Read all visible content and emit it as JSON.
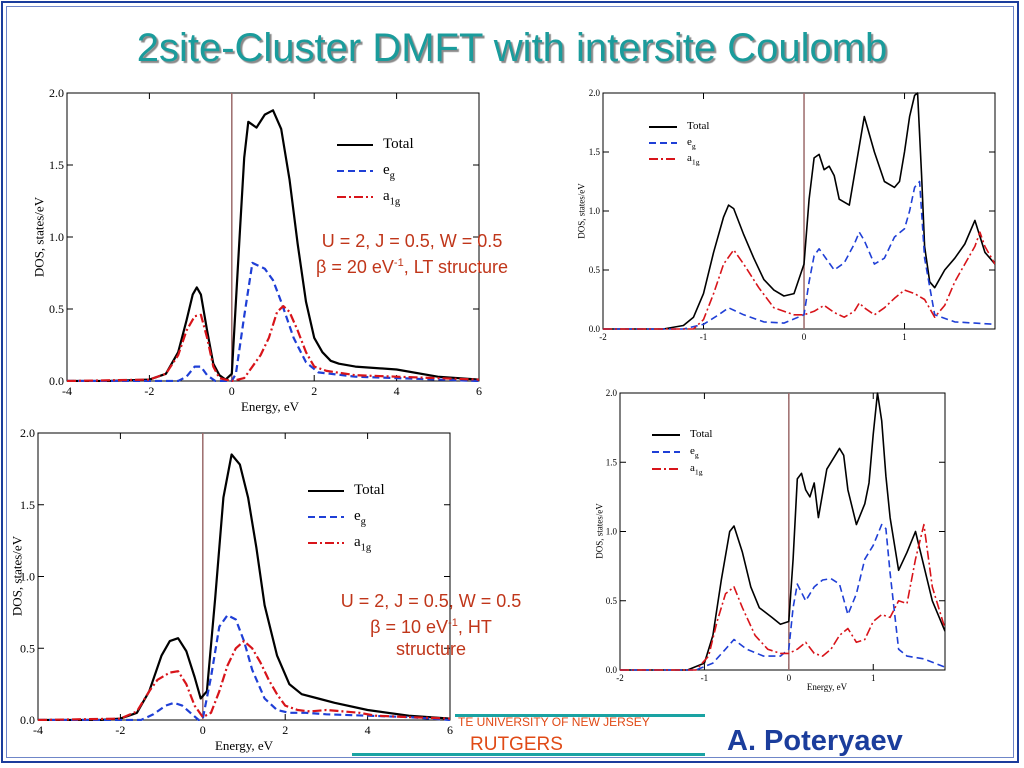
{
  "slide": {
    "title": "2site-Cluster DMFT with intersite Coulomb",
    "footer_university": "TE UNIVERSITY OF NEW JERSEY",
    "footer_rutgers": "RUTGERS",
    "footer_author": "A. Poteryaev"
  },
  "annotations": [
    {
      "lines": [
        "U = 2, J = 0.5, W = 0.5",
        "β = 20 eV",
        "-1",
        ", LT structure"
      ]
    },
    {
      "lines": [
        "U = 2, J = 0.5, W = 0.5",
        "β = 10 eV",
        "-1",
        ", HT",
        "structure"
      ]
    }
  ],
  "colors": {
    "total": "#000000",
    "eg": "#1f3fd6",
    "a1g": "#d8141a",
    "fermi_line": "#9c6b6b",
    "title": "#1a9c9c",
    "author": "#1b3d9c",
    "footer_text": "#e04a16",
    "footer_line": "#1aa3a3"
  },
  "chart_data": [
    {
      "type": "line",
      "xlabel": "Energy, eV",
      "ylabel": "DOS, states/eV",
      "xlim": [
        -4,
        6
      ],
      "ylim": [
        0,
        2
      ],
      "xticks": [
        -4,
        -2,
        0,
        2,
        4,
        6
      ],
      "xtick_labels": [
        "-4",
        "-2",
        "0",
        "2",
        "4",
        "6"
      ],
      "yticks": [
        0,
        0.5,
        1,
        1.5,
        2
      ],
      "ytick_labels": [
        "0.0",
        "0.5",
        "1.0",
        "1.5",
        "2.0"
      ],
      "vline_x": 0,
      "legend_position": "top-right",
      "series": [
        {
          "name": "Total",
          "style": "solid",
          "color": "#000000",
          "x": [
            -4,
            -3,
            -2,
            -1.6,
            -1.3,
            -1.1,
            -0.95,
            -0.85,
            -0.75,
            -0.6,
            -0.45,
            -0.3,
            -0.15,
            0,
            0.1,
            0.2,
            0.3,
            0.4,
            0.5,
            0.6,
            0.8,
            1,
            1.2,
            1.4,
            1.6,
            1.8,
            2,
            2.2,
            2.4,
            2.6,
            3,
            4,
            5,
            6
          ],
          "y": [
            0,
            0,
            0.01,
            0.05,
            0.2,
            0.42,
            0.6,
            0.65,
            0.6,
            0.35,
            0.12,
            0.04,
            0.01,
            0.05,
            0.55,
            1.05,
            1.55,
            1.8,
            1.78,
            1.76,
            1.85,
            1.88,
            1.75,
            1.4,
            0.95,
            0.55,
            0.3,
            0.2,
            0.14,
            0.12,
            0.1,
            0.08,
            0.03,
            0.01
          ]
        },
        {
          "name": "e_g",
          "style": "dashed",
          "color": "#1f3fd6",
          "x": [
            -4,
            -1.3,
            -1.1,
            -0.9,
            -0.75,
            -0.6,
            -0.4,
            0,
            0.1,
            0.3,
            0.5,
            0.65,
            0.8,
            1,
            1.2,
            1.5,
            1.8,
            2.1,
            2.4,
            3,
            4,
            6
          ],
          "y": [
            0,
            0,
            0.03,
            0.1,
            0.1,
            0.04,
            0,
            0,
            0.05,
            0.45,
            0.82,
            0.8,
            0.78,
            0.7,
            0.55,
            0.3,
            0.13,
            0.06,
            0.05,
            0.03,
            0.02,
            0
          ]
        },
        {
          "name": "a_1g",
          "style": "dashdot",
          "color": "#d8141a",
          "x": [
            -4,
            -2,
            -1.6,
            -1.3,
            -1.1,
            -0.9,
            -0.75,
            -0.6,
            -0.45,
            -0.3,
            0,
            0.3,
            0.5,
            0.7,
            0.9,
            1.1,
            1.25,
            1.4,
            1.6,
            1.8,
            2,
            2.3,
            3,
            4,
            6
          ],
          "y": [
            0,
            0.01,
            0.05,
            0.18,
            0.35,
            0.45,
            0.46,
            0.3,
            0.1,
            0.02,
            0,
            0.02,
            0.1,
            0.18,
            0.3,
            0.48,
            0.52,
            0.48,
            0.35,
            0.2,
            0.1,
            0.07,
            0.04,
            0.03,
            0.01
          ]
        }
      ]
    },
    {
      "type": "line",
      "xlabel": "",
      "ylabel": "DOS, states/eV",
      "xlim": [
        -2,
        1.9
      ],
      "ylim": [
        0,
        2
      ],
      "xticks": [
        -2,
        -1,
        0,
        1
      ],
      "xtick_labels": [
        "-2",
        "-1",
        "0",
        "1"
      ],
      "yticks": [
        0,
        0.5,
        1,
        1.5,
        2
      ],
      "ytick_labels": [
        "0.0",
        "0.5",
        "1.0",
        "1.5",
        "2.0"
      ],
      "vline_x": 0,
      "legend_position": "top-left",
      "series": [
        {
          "name": "Total",
          "style": "solid",
          "color": "#000000",
          "x": [
            -2,
            -1.4,
            -1.2,
            -1.1,
            -1.0,
            -0.9,
            -0.8,
            -0.75,
            -0.7,
            -0.6,
            -0.5,
            -0.4,
            -0.3,
            -0.2,
            -0.1,
            0,
            0.05,
            0.1,
            0.15,
            0.2,
            0.25,
            0.3,
            0.35,
            0.45,
            0.55,
            0.6,
            0.7,
            0.8,
            0.9,
            0.95,
            1.0,
            1.05,
            1.1,
            1.13,
            1.17,
            1.2,
            1.25,
            1.3,
            1.4,
            1.5,
            1.6,
            1.7,
            1.8,
            1.9
          ],
          "y": [
            0,
            0,
            0.03,
            0.1,
            0.3,
            0.65,
            0.95,
            1.05,
            1.02,
            0.8,
            0.6,
            0.42,
            0.33,
            0.28,
            0.3,
            0.55,
            1.1,
            1.45,
            1.48,
            1.35,
            1.38,
            1.3,
            1.1,
            1.05,
            1.55,
            1.8,
            1.5,
            1.25,
            1.2,
            1.25,
            1.5,
            1.8,
            1.98,
            2.0,
            1.3,
            0.7,
            0.4,
            0.35,
            0.5,
            0.6,
            0.72,
            0.92,
            0.65,
            0.55
          ]
        },
        {
          "name": "e_g",
          "style": "dashed",
          "color": "#1f3fd6",
          "x": [
            -2,
            -1.2,
            -1.0,
            -0.85,
            -0.75,
            -0.6,
            -0.4,
            -0.2,
            0,
            0.05,
            0.1,
            0.15,
            0.2,
            0.3,
            0.4,
            0.5,
            0.55,
            0.6,
            0.7,
            0.8,
            0.9,
            1.0,
            1.05,
            1.1,
            1.15,
            1.2,
            1.3,
            1.5,
            1.7,
            1.9
          ],
          "y": [
            0,
            0,
            0.04,
            0.12,
            0.18,
            0.12,
            0.06,
            0.05,
            0.12,
            0.4,
            0.62,
            0.68,
            0.62,
            0.5,
            0.56,
            0.72,
            0.82,
            0.75,
            0.55,
            0.6,
            0.78,
            0.85,
            1.0,
            1.2,
            1.25,
            0.6,
            0.12,
            0.06,
            0.05,
            0.04
          ]
        },
        {
          "name": "a_1g",
          "style": "dashdot",
          "color": "#d8141a",
          "x": [
            -2,
            -1.1,
            -1.0,
            -0.9,
            -0.8,
            -0.7,
            -0.6,
            -0.45,
            -0.3,
            -0.1,
            0,
            0.1,
            0.2,
            0.3,
            0.4,
            0.5,
            0.55,
            0.6,
            0.7,
            0.8,
            0.9,
            1.0,
            1.1,
            1.2,
            1.3,
            1.4,
            1.5,
            1.6,
            1.7,
            1.75,
            1.8,
            1.9
          ],
          "y": [
            0,
            0,
            0.08,
            0.3,
            0.55,
            0.67,
            0.55,
            0.35,
            0.18,
            0.12,
            0.12,
            0.15,
            0.2,
            0.14,
            0.1,
            0.15,
            0.22,
            0.18,
            0.12,
            0.18,
            0.26,
            0.33,
            0.3,
            0.25,
            0.1,
            0.2,
            0.4,
            0.55,
            0.7,
            0.82,
            0.7,
            0.55
          ]
        }
      ]
    },
    {
      "type": "line",
      "xlabel": "Energy, eV",
      "ylabel": "DOS, states/eV",
      "xlim": [
        -4,
        6
      ],
      "ylim": [
        0,
        2
      ],
      "xticks": [
        -4,
        -2,
        0,
        2,
        4,
        6
      ],
      "xtick_labels": [
        "-4",
        "-2",
        "0",
        "2",
        "4",
        "6"
      ],
      "yticks": [
        0,
        0.5,
        1,
        1.5,
        2
      ],
      "ytick_labels": [
        "0.0",
        "0.5",
        "1.0",
        "1.5",
        "2.0"
      ],
      "vline_x": 0,
      "legend_position": "top-right",
      "series": [
        {
          "name": "Total",
          "style": "solid",
          "color": "#000000",
          "x": [
            -4,
            -2.5,
            -2,
            -1.6,
            -1.3,
            -1.0,
            -0.8,
            -0.6,
            -0.4,
            -0.2,
            -0.05,
            0.1,
            0.3,
            0.5,
            0.7,
            0.9,
            1.1,
            1.3,
            1.5,
            1.8,
            2.1,
            2.4,
            2.8,
            3.2,
            4,
            5,
            6
          ],
          "y": [
            0,
            0,
            0.01,
            0.05,
            0.2,
            0.45,
            0.55,
            0.57,
            0.48,
            0.3,
            0.15,
            0.2,
            0.85,
            1.55,
            1.85,
            1.78,
            1.55,
            1.2,
            0.8,
            0.45,
            0.25,
            0.18,
            0.15,
            0.12,
            0.07,
            0.03,
            0.01
          ]
        },
        {
          "name": "e_g",
          "style": "dashed",
          "color": "#1f3fd6",
          "x": [
            -4,
            -1.5,
            -1.2,
            -0.9,
            -0.7,
            -0.5,
            -0.3,
            -0.1,
            0,
            0.2,
            0.4,
            0.6,
            0.8,
            1.0,
            1.2,
            1.5,
            1.8,
            2.1,
            2.5,
            3,
            4,
            5,
            6
          ],
          "y": [
            0,
            0,
            0.04,
            0.1,
            0.12,
            0.1,
            0.05,
            0,
            0.01,
            0.3,
            0.65,
            0.73,
            0.7,
            0.55,
            0.35,
            0.15,
            0.07,
            0.05,
            0.05,
            0.04,
            0.03,
            0.02,
            0
          ]
        },
        {
          "name": "a_1g",
          "style": "dashdot",
          "color": "#d8141a",
          "x": [
            -4,
            -2,
            -1.6,
            -1.3,
            -1.1,
            -0.8,
            -0.6,
            -0.4,
            -0.2,
            0,
            0.2,
            0.4,
            0.6,
            0.8,
            1.0,
            1.2,
            1.4,
            1.6,
            1.8,
            2.0,
            2.3,
            2.6,
            3,
            3.4,
            3.8,
            4.2,
            5,
            6
          ],
          "y": [
            0,
            0.01,
            0.06,
            0.2,
            0.28,
            0.33,
            0.34,
            0.25,
            0.1,
            0.02,
            0.05,
            0.2,
            0.38,
            0.5,
            0.55,
            0.5,
            0.4,
            0.28,
            0.18,
            0.1,
            0.07,
            0.06,
            0.07,
            0.06,
            0.05,
            0.03,
            0.02,
            0.01
          ]
        }
      ]
    },
    {
      "type": "line",
      "xlabel": "Energy, eV",
      "ylabel": "DOS, states/eV",
      "xlim": [
        -2,
        1.85
      ],
      "ylim": [
        0,
        2
      ],
      "xticks": [
        -2,
        -1,
        0,
        1
      ],
      "xtick_labels": [
        "-2",
        "-1",
        "0",
        "1"
      ],
      "yticks": [
        0,
        0.5,
        1,
        1.5,
        2
      ],
      "ytick_labels": [
        "0.0",
        "0.5",
        "1.0",
        "1.5",
        "2.0"
      ],
      "vline_x": 0,
      "legend_position": "top-left",
      "series": [
        {
          "name": "Total",
          "style": "solid",
          "color": "#000000",
          "x": [
            -2,
            -1.2,
            -1.0,
            -0.9,
            -0.8,
            -0.7,
            -0.65,
            -0.55,
            -0.45,
            -0.35,
            -0.2,
            -0.1,
            0,
            0.05,
            0.1,
            0.15,
            0.2,
            0.25,
            0.3,
            0.35,
            0.45,
            0.55,
            0.6,
            0.65,
            0.7,
            0.8,
            0.9,
            0.95,
            1.0,
            1.05,
            1.1,
            1.15,
            1.2,
            1.3,
            1.4,
            1.5,
            1.6,
            1.7,
            1.85
          ],
          "y": [
            0,
            0,
            0.05,
            0.25,
            0.65,
            1.0,
            1.04,
            0.85,
            0.6,
            0.45,
            0.38,
            0.33,
            0.35,
            0.8,
            1.38,
            1.42,
            1.3,
            1.25,
            1.35,
            1.1,
            1.45,
            1.55,
            1.6,
            1.55,
            1.3,
            1.05,
            1.2,
            1.35,
            1.7,
            2.0,
            1.8,
            1.4,
            1.1,
            0.72,
            0.85,
            1.0,
            0.75,
            0.5,
            0.28
          ]
        },
        {
          "name": "e_g",
          "style": "dashed",
          "color": "#1f3fd6",
          "x": [
            -2,
            -1.1,
            -0.9,
            -0.75,
            -0.65,
            -0.5,
            -0.3,
            -0.1,
            0,
            0.05,
            0.1,
            0.2,
            0.3,
            0.4,
            0.5,
            0.6,
            0.7,
            0.8,
            0.9,
            1.0,
            1.1,
            1.15,
            1.2,
            1.3,
            1.4,
            1.6,
            1.85
          ],
          "y": [
            0,
            0,
            0.05,
            0.15,
            0.22,
            0.15,
            0.1,
            0.1,
            0.15,
            0.45,
            0.62,
            0.5,
            0.6,
            0.65,
            0.66,
            0.62,
            0.4,
            0.55,
            0.8,
            0.9,
            1.05,
            1.02,
            0.7,
            0.15,
            0.1,
            0.08,
            0.02
          ]
        },
        {
          "name": "a_1g",
          "style": "dashdot",
          "color": "#d8141a",
          "x": [
            -2,
            -1.1,
            -0.95,
            -0.85,
            -0.75,
            -0.65,
            -0.55,
            -0.4,
            -0.25,
            -0.1,
            0,
            0.1,
            0.2,
            0.3,
            0.4,
            0.5,
            0.6,
            0.7,
            0.8,
            0.9,
            1.0,
            1.1,
            1.2,
            1.3,
            1.4,
            1.5,
            1.6,
            1.7,
            1.85
          ],
          "y": [
            0,
            0,
            0.1,
            0.35,
            0.55,
            0.6,
            0.45,
            0.25,
            0.15,
            0.12,
            0.12,
            0.15,
            0.2,
            0.12,
            0.1,
            0.15,
            0.25,
            0.3,
            0.2,
            0.22,
            0.35,
            0.4,
            0.38,
            0.5,
            0.48,
            0.8,
            1.05,
            0.6,
            0.3
          ]
        }
      ]
    }
  ]
}
